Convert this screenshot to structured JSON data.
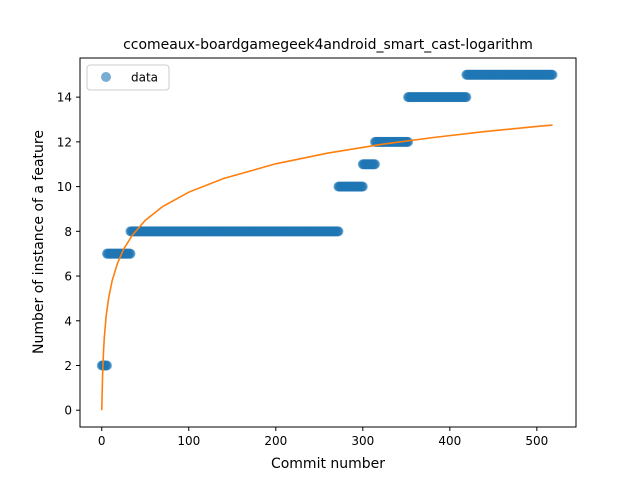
{
  "chart_data": {
    "type": "scatter",
    "title": "ccomeaux-boardgamegeek4android_smart_cast-logarithm",
    "xlabel": "Commit number",
    "ylabel": "Number of instance of a feature",
    "xlim": [
      -25,
      545
    ],
    "ylim": [
      -0.75,
      15.75
    ],
    "xticks": [
      0,
      100,
      200,
      300,
      400,
      500
    ],
    "yticks": [
      0,
      2,
      4,
      6,
      8,
      10,
      12,
      14
    ],
    "grid": false,
    "legend": {
      "placement": "top-left",
      "entries": [
        "data"
      ]
    },
    "colors": {
      "data": "#1f77b4",
      "fit": "#ff7f0e"
    },
    "series": [
      {
        "name": "data",
        "kind": "scatter",
        "segments": [
          {
            "x_start": 0,
            "x_end": 6,
            "y": 2
          },
          {
            "x_start": 6,
            "x_end": 33,
            "y": 7
          },
          {
            "x_start": 33,
            "x_end": 272,
            "y": 8
          },
          {
            "x_start": 272,
            "x_end": 300,
            "y": 10
          },
          {
            "x_start": 300,
            "x_end": 314,
            "y": 11
          },
          {
            "x_start": 314,
            "x_end": 352,
            "y": 12
          },
          {
            "x_start": 352,
            "x_end": 419,
            "y": 14
          },
          {
            "x_start": 419,
            "x_end": 518,
            "y": 15
          }
        ]
      },
      {
        "kind": "line",
        "x": [
          0,
          1,
          2,
          3,
          5,
          8,
          12,
          18,
          25,
          35,
          50,
          70,
          100,
          140,
          200,
          260,
          320,
          380,
          440,
          500,
          518
        ],
        "y": [
          0.0,
          1.64,
          2.61,
          3.28,
          4.2,
          5.04,
          5.8,
          6.56,
          7.19,
          7.82,
          8.49,
          9.11,
          9.75,
          10.36,
          11.02,
          11.5,
          11.88,
          12.19,
          12.46,
          12.69,
          12.75
        ]
      }
    ]
  }
}
